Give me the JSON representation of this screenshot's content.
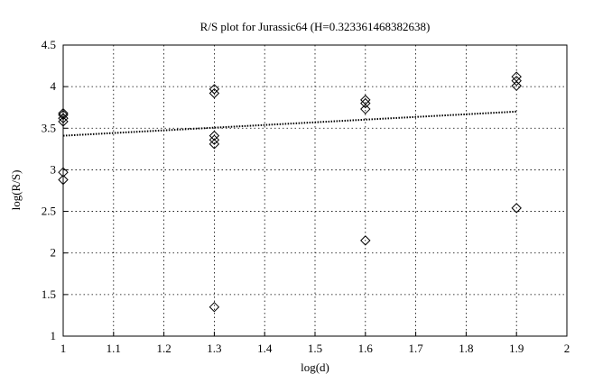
{
  "chart_data": {
    "type": "scatter",
    "title": "R/S plot for Jurassic64 (H=0.323361468382638)",
    "x_label": "log(d)",
    "y_label": "log(R/S)",
    "xlim": [
      1,
      2
    ],
    "ylim": [
      1,
      4.5
    ],
    "xticks": [
      1,
      1.1,
      1.2,
      1.3,
      1.4,
      1.5,
      1.6,
      1.7,
      1.8,
      1.9,
      2
    ],
    "yticks": [
      1,
      1.5,
      2,
      2.5,
      3,
      3.5,
      4,
      4.5
    ],
    "grid": true,
    "series": [
      {
        "type": "scatter",
        "marker": "diamond",
        "color": "#000000",
        "x": [
          1,
          1,
          1,
          1,
          1,
          1,
          1.3,
          1.3,
          1.3,
          1.3,
          1.3,
          1.3,
          1.6,
          1.6,
          1.6,
          1.6,
          1.9,
          1.9,
          1.9,
          1.9
        ],
        "values": [
          3.68,
          3.66,
          3.62,
          3.58,
          2.97,
          2.88,
          3.97,
          3.92,
          3.41,
          3.36,
          3.31,
          1.35,
          3.84,
          3.8,
          3.73,
          2.15,
          4.12,
          4.07,
          4.01,
          2.54
        ]
      },
      {
        "type": "line",
        "linestyle": "dotted",
        "color": "#000000",
        "x": [
          1,
          1.9
        ],
        "values": [
          3.41,
          3.7
        ]
      }
    ]
  }
}
